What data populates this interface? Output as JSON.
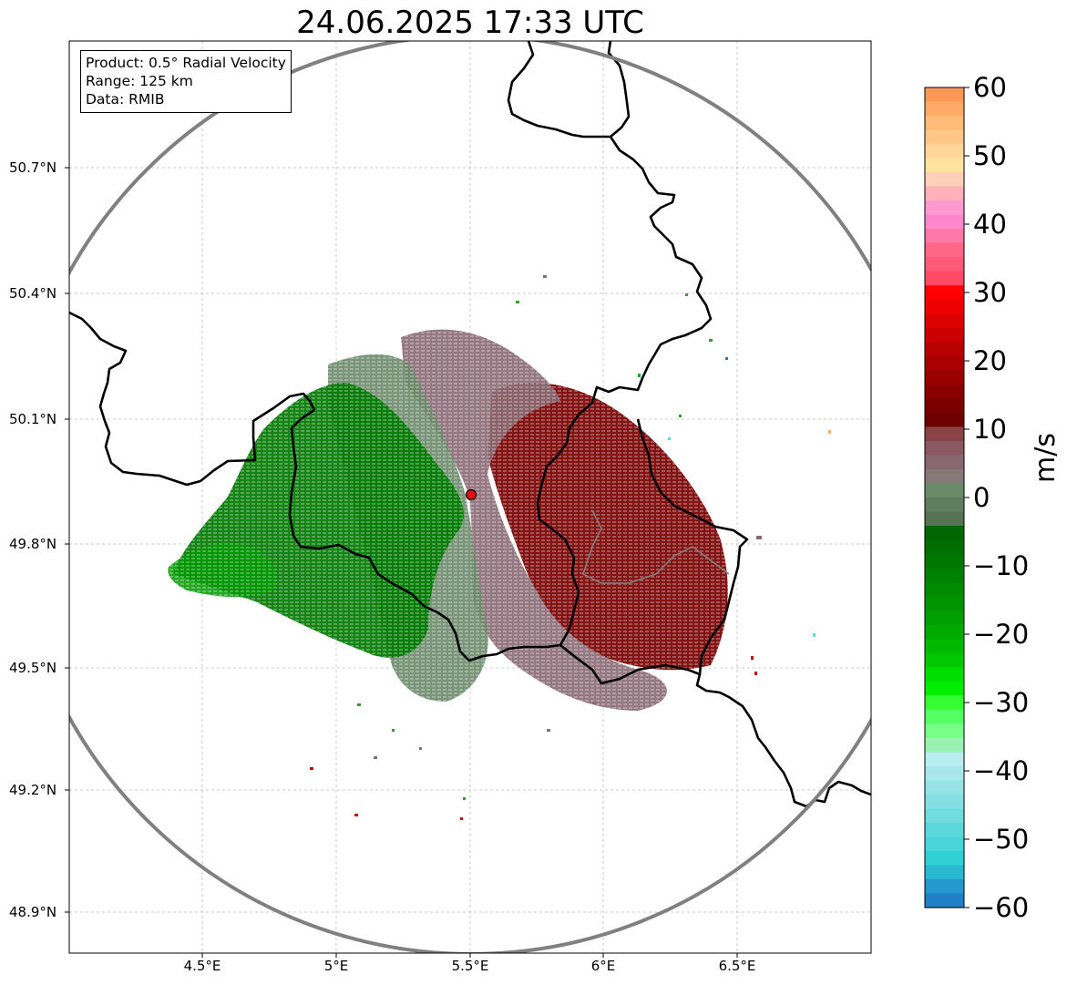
{
  "title": "24.06.2025 17:33 UTC",
  "info": {
    "product": "Product: 0.5° Radial Velocity",
    "range": "Range: 125 km",
    "data": "Data: RMIB"
  },
  "map": {
    "lon_range": [
      4.0,
      7.0
    ],
    "lat_range": [
      48.8,
      50.98
    ],
    "radar_site": {
      "lon": 5.505,
      "lat": 49.914
    },
    "range_ring_km": 125,
    "gridlines": true,
    "lat_ticks": [
      "50.7°N",
      "50.4°N",
      "50.1°N",
      "49.8°N",
      "49.5°N",
      "49.2°N",
      "48.9°N"
    ],
    "lon_ticks": [
      "4.5°E",
      "5°E",
      "5.5°E",
      "6°E",
      "6.5°E"
    ],
    "colors": {
      "border": "#000000",
      "range_ring": "#808080",
      "grid": "#bbbbbb",
      "site": "#e01010"
    }
  },
  "colorbar": {
    "unit": "m/s",
    "vmin": -60,
    "vmax": 60,
    "tick_labels": [
      "60",
      "50",
      "40",
      "30",
      "20",
      "10",
      "0",
      "−10",
      "−20",
      "−30",
      "−40",
      "−50",
      "−60"
    ],
    "colors_top_to_bottom": [
      "#ff9955",
      "#ffaa66",
      "#ffbb77",
      "#ffc888",
      "#ffd699",
      "#ffe4a0",
      "#ffcfb8",
      "#ffb0b8",
      "#ff9ad0",
      "#ff88cc",
      "#ff78a8",
      "#ff6688",
      "#ff5a78",
      "#ff4a66",
      "#ff0000",
      "#ee0000",
      "#dd0000",
      "#cc0000",
      "#b80000",
      "#a80000",
      "#990000",
      "#880000",
      "#7a0000",
      "#6e0000",
      "#884444",
      "#8a5860",
      "#876870",
      "#857a78",
      "#6a8a6a",
      "#5e7e5e",
      "#567356",
      "#006600",
      "#006e00",
      "#007700",
      "#008000",
      "#008a00",
      "#009400",
      "#009e00",
      "#00aa00",
      "#00b800",
      "#00c800",
      "#00dd00",
      "#00ee00",
      "#33ff33",
      "#55ff66",
      "#77ff88",
      "#99f2b2",
      "#b8ecee",
      "#a8e8ea",
      "#96e4e6",
      "#84e0e2",
      "#70dcdf",
      "#5cd8dc",
      "#48d4d8",
      "#30d0d4",
      "#29b8d0",
      "#2298cc",
      "#1f80c8"
    ]
  }
}
